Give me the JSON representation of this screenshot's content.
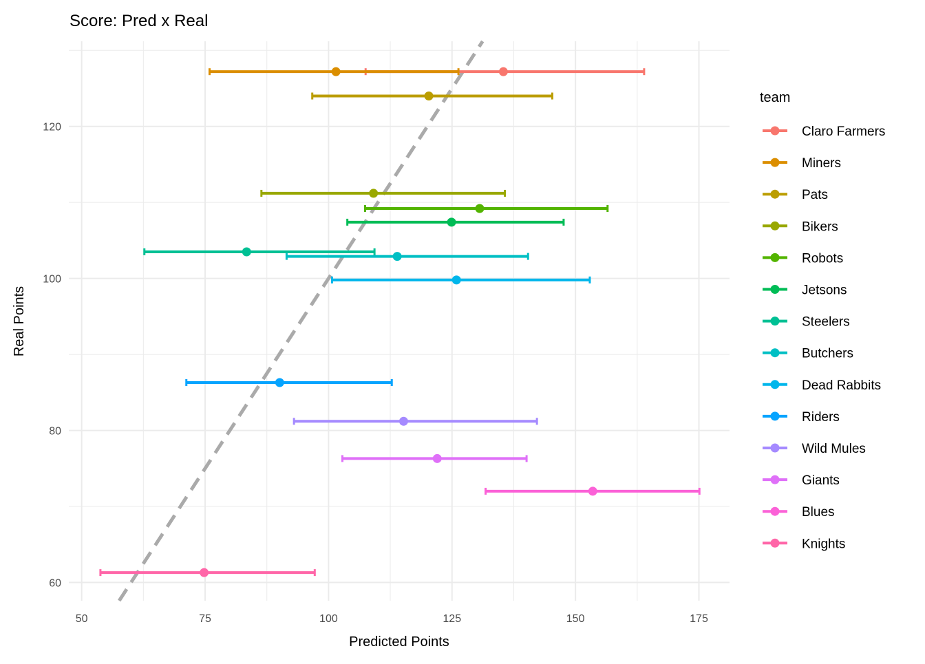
{
  "chart_data": {
    "type": "scatter",
    "title": "Score: Pred x Real",
    "xlabel": "Predicted Points",
    "ylabel": "Real Points",
    "xlim": [
      47.4,
      181.2
    ],
    "ylim": [
      57.6,
      131.2
    ],
    "x_ticks": [
      50,
      75,
      100,
      125,
      150,
      175
    ],
    "y_ticks": [
      60,
      80,
      100,
      120
    ],
    "grid": true,
    "legend_title": "team",
    "legend_position": "right",
    "reference_line": {
      "type": "identity",
      "style": "dashed",
      "color": "#AAAAAA"
    },
    "series": [
      {
        "name": "Claro Farmers",
        "color": "#F8766D",
        "x": 135.4,
        "y": 127.2,
        "xmin": 107.5,
        "xmax": 163.9
      },
      {
        "name": "Miners",
        "color": "#DB8E00",
        "x": 101.5,
        "y": 127.2,
        "xmin": 75.9,
        "xmax": 126.3
      },
      {
        "name": "Pats",
        "color": "#BB9D00",
        "x": 120.3,
        "y": 124.0,
        "xmin": 96.7,
        "xmax": 145.3
      },
      {
        "name": "Bikers",
        "color": "#99A800",
        "x": 109.1,
        "y": 111.2,
        "xmin": 86.4,
        "xmax": 135.7
      },
      {
        "name": "Robots",
        "color": "#53B400",
        "x": 130.6,
        "y": 109.2,
        "xmin": 107.4,
        "xmax": 156.5
      },
      {
        "name": "Jetsons",
        "color": "#00BC56",
        "x": 124.9,
        "y": 107.4,
        "xmin": 103.8,
        "xmax": 147.6
      },
      {
        "name": "Steelers",
        "color": "#00C094",
        "x": 83.4,
        "y": 103.5,
        "xmin": 62.7,
        "xmax": 109.3
      },
      {
        "name": "Butchers",
        "color": "#00BFC4",
        "x": 113.9,
        "y": 102.9,
        "xmin": 91.5,
        "xmax": 140.4
      },
      {
        "name": "Dead Rabbits",
        "color": "#00B6EB",
        "x": 125.9,
        "y": 99.8,
        "xmin": 100.7,
        "xmax": 152.9
      },
      {
        "name": "Riders",
        "color": "#06A4FF",
        "x": 90.1,
        "y": 86.3,
        "xmin": 71.2,
        "xmax": 112.8
      },
      {
        "name": "Wild Mules",
        "color": "#A58AFF",
        "x": 115.2,
        "y": 81.2,
        "xmin": 93.0,
        "xmax": 142.2
      },
      {
        "name": "Giants",
        "color": "#DF70F8",
        "x": 122.0,
        "y": 76.3,
        "xmin": 102.8,
        "xmax": 140.1
      },
      {
        "name": "Blues",
        "color": "#FB61D7",
        "x": 153.5,
        "y": 72.0,
        "xmin": 131.8,
        "xmax": 175.1
      },
      {
        "name": "Knights",
        "color": "#FF66A8",
        "x": 74.8,
        "y": 61.3,
        "xmin": 53.8,
        "xmax": 97.2
      }
    ]
  }
}
